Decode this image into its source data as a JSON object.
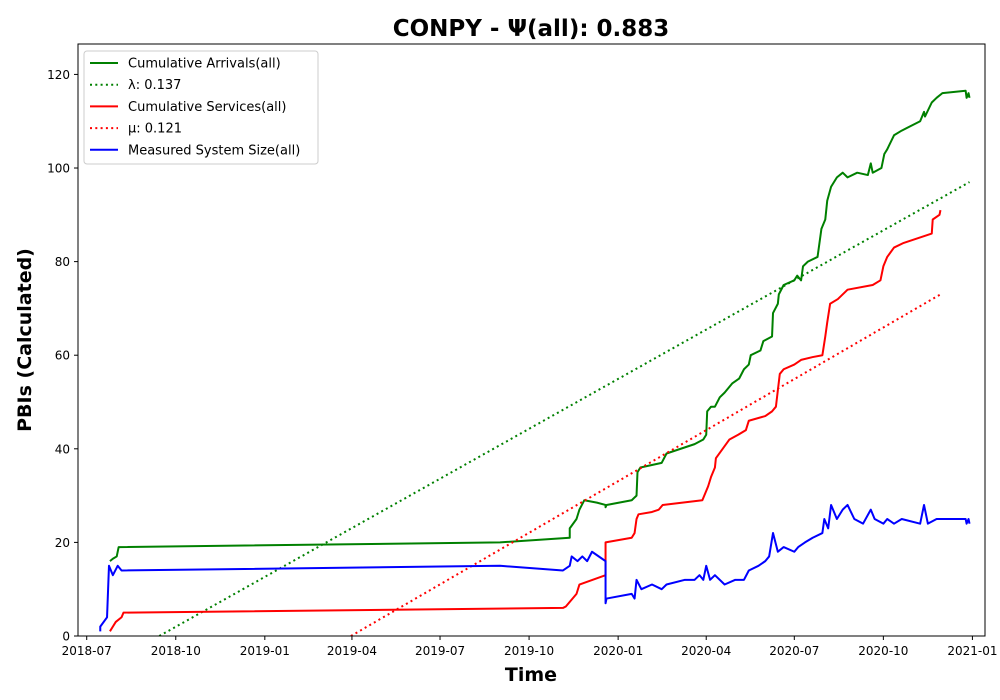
{
  "chart_data": {
    "type": "line",
    "title": "CONPY -  Ψ(all): 0.883",
    "xlabel": "Time",
    "ylabel": "PBIs (Calculated)",
    "x_type": "date",
    "xlim": [
      "2018-06-22",
      "2021-01-14"
    ],
    "ylim": [
      0,
      126.5
    ],
    "xticks": [
      "2018-07-01",
      "2018-10-01",
      "2019-01-01",
      "2019-04-01",
      "2019-07-01",
      "2019-10-01",
      "2020-01-01",
      "2020-04-01",
      "2020-07-01",
      "2020-10-01",
      "2021-01-01"
    ],
    "xtick_labels": [
      "2018-07",
      "2018-10",
      "2019-01",
      "2019-04",
      "2019-07",
      "2019-10",
      "2020-01",
      "2020-04",
      "2020-07",
      "2020-10",
      "2021-01"
    ],
    "yticks": [
      0,
      20,
      40,
      60,
      80,
      100,
      120
    ],
    "grid": false,
    "legend_position": "top-left",
    "series": [
      {
        "name": "Cumulative Arrivals(all)",
        "color": "#008000",
        "style": "solid",
        "points": [
          [
            "2018-07-25",
            16
          ],
          [
            "2018-07-28",
            16.5
          ],
          [
            "2018-08-01",
            17
          ],
          [
            "2018-08-03",
            19
          ],
          [
            "2019-09-01",
            20
          ],
          [
            "2019-11-12",
            21
          ],
          [
            "2019-11-12",
            23
          ],
          [
            "2019-11-19",
            25
          ],
          [
            "2019-11-22",
            27
          ],
          [
            "2019-11-27",
            29
          ],
          [
            "2019-12-10",
            28.5
          ],
          [
            "2019-12-19",
            28
          ],
          [
            "2019-12-19",
            27.5
          ],
          [
            "2019-12-20",
            28
          ],
          [
            "2020-01-15",
            29
          ],
          [
            "2020-01-20",
            30
          ],
          [
            "2020-01-21",
            35
          ],
          [
            "2020-01-24",
            36
          ],
          [
            "2020-02-15",
            37
          ],
          [
            "2020-02-20",
            39
          ],
          [
            "2020-03-20",
            41
          ],
          [
            "2020-03-29",
            42
          ],
          [
            "2020-04-01",
            43
          ],
          [
            "2020-04-02",
            48
          ],
          [
            "2020-04-06",
            49
          ],
          [
            "2020-04-10",
            49
          ],
          [
            "2020-04-15",
            51
          ],
          [
            "2020-04-20",
            52
          ],
          [
            "2020-04-28",
            54
          ],
          [
            "2020-05-05",
            55
          ],
          [
            "2020-05-10",
            57
          ],
          [
            "2020-05-15",
            58
          ],
          [
            "2020-05-17",
            60
          ],
          [
            "2020-05-27",
            61
          ],
          [
            "2020-05-30",
            63
          ],
          [
            "2020-06-08",
            64
          ],
          [
            "2020-06-09",
            69
          ],
          [
            "2020-06-14",
            71
          ],
          [
            "2020-06-15",
            73
          ],
          [
            "2020-06-20",
            75
          ],
          [
            "2020-07-01",
            76
          ],
          [
            "2020-07-04",
            77
          ],
          [
            "2020-07-08",
            76
          ],
          [
            "2020-07-10",
            79
          ],
          [
            "2020-07-15",
            80
          ],
          [
            "2020-07-25",
            81
          ],
          [
            "2020-07-29",
            87
          ],
          [
            "2020-08-02",
            89
          ],
          [
            "2020-08-04",
            93
          ],
          [
            "2020-08-08",
            96
          ],
          [
            "2020-08-14",
            98
          ],
          [
            "2020-08-20",
            99
          ],
          [
            "2020-08-25",
            98
          ],
          [
            "2020-09-04",
            99
          ],
          [
            "2020-09-15",
            98.5
          ],
          [
            "2020-09-18",
            101
          ],
          [
            "2020-09-20",
            99
          ],
          [
            "2020-09-29",
            100
          ],
          [
            "2020-10-02",
            103
          ],
          [
            "2020-10-05",
            104
          ],
          [
            "2020-10-12",
            107
          ],
          [
            "2020-10-20",
            108
          ],
          [
            "2020-11-08",
            110
          ],
          [
            "2020-11-12",
            112
          ],
          [
            "2020-11-13",
            111
          ],
          [
            "2020-11-20",
            114
          ],
          [
            "2020-11-25",
            115
          ],
          [
            "2020-12-01",
            116
          ],
          [
            "2020-12-25",
            116.5
          ],
          [
            "2020-12-26",
            115
          ],
          [
            "2020-12-28",
            116
          ],
          [
            "2020-12-29",
            115
          ]
        ]
      },
      {
        "name": "λ: 0.137",
        "color": "#008000",
        "style": "dotted",
        "points": [
          [
            "2018-09-14",
            0
          ],
          [
            "2020-12-29",
            97
          ]
        ]
      },
      {
        "name": "Cumulative Services(all)",
        "color": "#ff0000",
        "style": "solid",
        "points": [
          [
            "2018-07-25",
            1
          ],
          [
            "2018-07-28",
            2
          ],
          [
            "2018-07-31",
            3
          ],
          [
            "2018-08-06",
            4
          ],
          [
            "2018-08-08",
            5
          ],
          [
            "2019-11-05",
            6
          ],
          [
            "2019-11-08",
            6.3
          ],
          [
            "2019-11-19",
            9
          ],
          [
            "2019-11-22",
            11
          ],
          [
            "2019-12-19",
            13
          ],
          [
            "2019-12-19",
            20
          ],
          [
            "2020-01-15",
            21
          ],
          [
            "2020-01-18",
            22
          ],
          [
            "2020-01-20",
            25
          ],
          [
            "2020-01-22",
            26
          ],
          [
            "2020-02-05",
            26.5
          ],
          [
            "2020-02-12",
            27
          ],
          [
            "2020-02-16",
            28
          ],
          [
            "2020-03-28",
            29
          ],
          [
            "2020-04-03",
            32
          ],
          [
            "2020-04-06",
            34
          ],
          [
            "2020-04-10",
            36
          ],
          [
            "2020-04-11",
            38
          ],
          [
            "2020-04-18",
            40
          ],
          [
            "2020-04-25",
            42
          ],
          [
            "2020-05-04",
            43
          ],
          [
            "2020-05-12",
            44
          ],
          [
            "2020-05-15",
            46
          ],
          [
            "2020-06-01",
            47
          ],
          [
            "2020-06-08",
            48
          ],
          [
            "2020-06-12",
            49
          ],
          [
            "2020-06-16",
            56
          ],
          [
            "2020-06-20",
            57
          ],
          [
            "2020-07-01",
            58
          ],
          [
            "2020-07-08",
            59
          ],
          [
            "2020-07-20",
            59.6
          ],
          [
            "2020-07-30",
            60
          ],
          [
            "2020-08-02",
            64
          ],
          [
            "2020-08-04",
            67
          ],
          [
            "2020-08-07",
            71
          ],
          [
            "2020-08-15",
            72
          ],
          [
            "2020-08-25",
            74
          ],
          [
            "2020-09-20",
            75
          ],
          [
            "2020-09-28",
            76
          ],
          [
            "2020-10-01",
            79
          ],
          [
            "2020-10-05",
            81
          ],
          [
            "2020-10-12",
            83
          ],
          [
            "2020-10-22",
            84
          ],
          [
            "2020-11-20",
            86
          ],
          [
            "2020-11-21",
            89
          ],
          [
            "2020-11-28",
            90
          ],
          [
            "2020-11-29",
            91
          ]
        ]
      },
      {
        "name": "μ: 0.121",
        "color": "#ff0000",
        "style": "dotted",
        "points": [
          [
            "2019-03-31",
            0
          ],
          [
            "2020-11-29",
            73
          ]
        ]
      },
      {
        "name": "Measured System Size(all)",
        "color": "#0000ff",
        "style": "solid",
        "points": [
          [
            "2018-07-15",
            1
          ],
          [
            "2018-07-15",
            2
          ],
          [
            "2018-07-22",
            4
          ],
          [
            "2018-07-24",
            15
          ],
          [
            "2018-07-28",
            13
          ],
          [
            "2018-08-02",
            15
          ],
          [
            "2018-08-06",
            14
          ],
          [
            "2019-09-01",
            15
          ],
          [
            "2019-11-05",
            14
          ],
          [
            "2019-11-12",
            15
          ],
          [
            "2019-11-14",
            17
          ],
          [
            "2019-11-20",
            16
          ],
          [
            "2019-11-25",
            17
          ],
          [
            "2019-11-30",
            16
          ],
          [
            "2019-12-05",
            18
          ],
          [
            "2019-12-19",
            16
          ],
          [
            "2019-12-19",
            7
          ],
          [
            "2019-12-20",
            8
          ],
          [
            "2020-01-15",
            9
          ],
          [
            "2020-01-18",
            8
          ],
          [
            "2020-01-20",
            12
          ],
          [
            "2020-01-25",
            10
          ],
          [
            "2020-02-05",
            11
          ],
          [
            "2020-02-15",
            10
          ],
          [
            "2020-02-20",
            11
          ],
          [
            "2020-03-10",
            12
          ],
          [
            "2020-03-20",
            12
          ],
          [
            "2020-03-25",
            13
          ],
          [
            "2020-03-29",
            12
          ],
          [
            "2020-04-01",
            15
          ],
          [
            "2020-04-05",
            12
          ],
          [
            "2020-04-10",
            13
          ],
          [
            "2020-04-20",
            11
          ],
          [
            "2020-05-01",
            12
          ],
          [
            "2020-05-10",
            12
          ],
          [
            "2020-05-15",
            14
          ],
          [
            "2020-05-25",
            15
          ],
          [
            "2020-06-01",
            16
          ],
          [
            "2020-06-05",
            17
          ],
          [
            "2020-06-09",
            22
          ],
          [
            "2020-06-14",
            18
          ],
          [
            "2020-06-20",
            19
          ],
          [
            "2020-07-01",
            18
          ],
          [
            "2020-07-05",
            19
          ],
          [
            "2020-07-12",
            20
          ],
          [
            "2020-07-20",
            21
          ],
          [
            "2020-07-30",
            22
          ],
          [
            "2020-08-01",
            25
          ],
          [
            "2020-08-05",
            23
          ],
          [
            "2020-08-08",
            28
          ],
          [
            "2020-08-14",
            25
          ],
          [
            "2020-08-20",
            27
          ],
          [
            "2020-08-25",
            28
          ],
          [
            "2020-09-01",
            25
          ],
          [
            "2020-09-10",
            24
          ],
          [
            "2020-09-18",
            27
          ],
          [
            "2020-09-22",
            25
          ],
          [
            "2020-10-01",
            24
          ],
          [
            "2020-10-05",
            25
          ],
          [
            "2020-10-12",
            24
          ],
          [
            "2020-10-20",
            25
          ],
          [
            "2020-11-08",
            24
          ],
          [
            "2020-11-12",
            28
          ],
          [
            "2020-11-16",
            24
          ],
          [
            "2020-11-25",
            25
          ],
          [
            "2020-12-25",
            25
          ],
          [
            "2020-12-26",
            24
          ],
          [
            "2020-12-28",
            25
          ],
          [
            "2020-12-29",
            24
          ]
        ]
      }
    ]
  }
}
